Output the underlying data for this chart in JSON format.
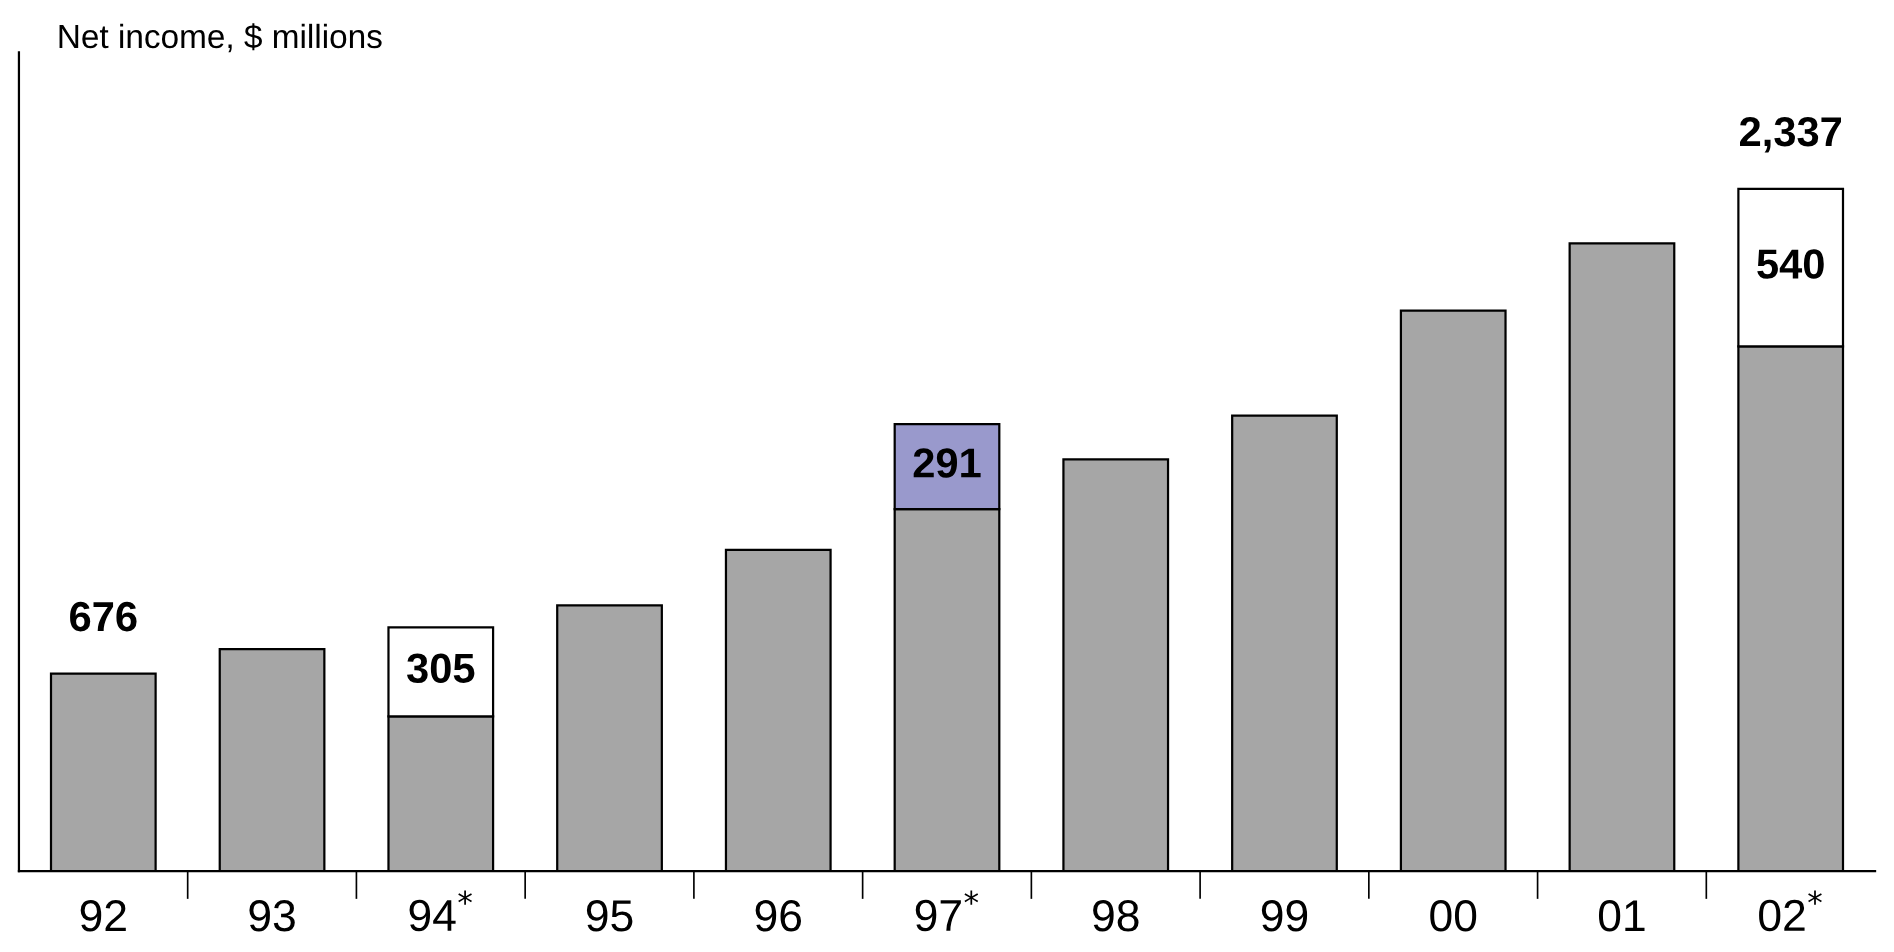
{
  "chart_data": {
    "type": "bar",
    "title": "Net income, $ millions",
    "stacked": true,
    "categories": [
      "92",
      "93",
      "94$^{*}$",
      "95",
      "96",
      "97$^{*}$",
      "98",
      "99",
      "00",
      "01",
      "02$^{*}$"
    ],
    "series": [
      {
        "color": "#a6a6a6",
        "values": [
          676,
          760,
          530,
          910,
          1100,
          1240,
          1410,
          1560,
          1920,
          2150,
          1797
        ]
      },
      {
        "colors": [
          "#ffffff",
          "#ffffff",
          "#ffffff",
          "#ffffff",
          "#ffffff",
          "#9999cc",
          "#ffffff",
          "#ffffff",
          "#ffffff",
          "#ffffff",
          "#ffffff"
        ],
        "values": [
          null,
          null,
          305,
          null,
          null,
          291,
          null,
          null,
          null,
          null,
          540
        ],
        "value_labels": [
          null,
          null,
          "305",
          null,
          null,
          "291",
          null,
          null,
          null,
          null,
          "540"
        ]
      }
    ],
    "totals": [
      "676",
      null,
      null,
      null,
      null,
      null,
      null,
      null,
      null,
      null,
      "2,337"
    ],
    "grid": false,
    "legend": false
  }
}
